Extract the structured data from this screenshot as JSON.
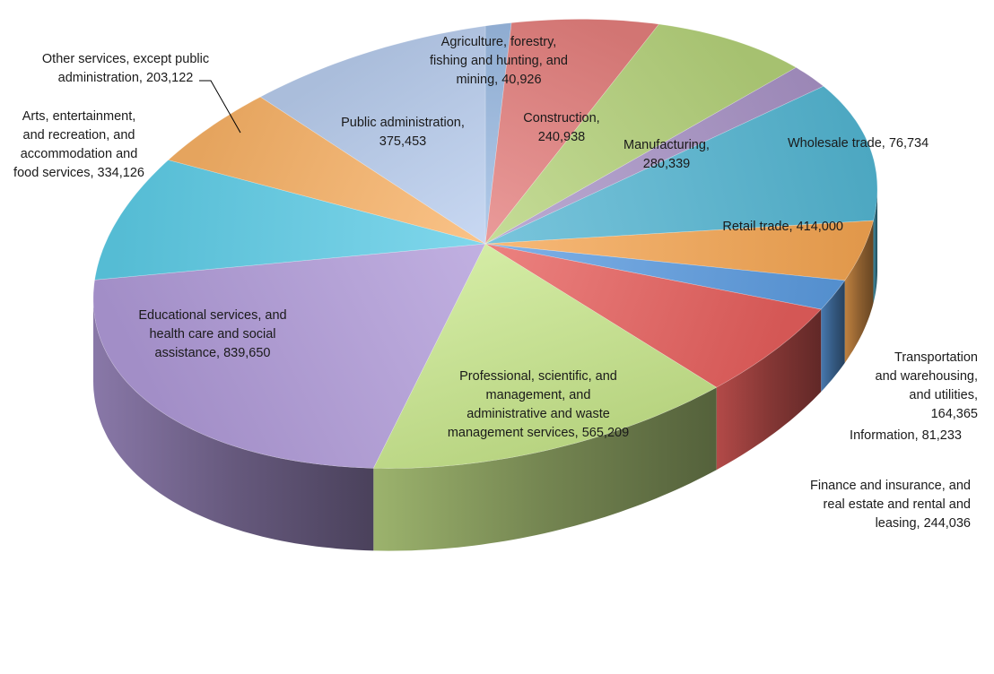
{
  "chart_data": {
    "type": "pie",
    "style": "3d",
    "slices": [
      {
        "label": "Agriculture, forestry, fishing and hunting, and mining",
        "value": 40926,
        "color": "#9bbbe3",
        "text": [
          "Agriculture, forestry,",
          "fishing and hunting, and",
          "mining, 40,926"
        ]
      },
      {
        "label": "Construction",
        "value": 240938,
        "color": "#e47f7d",
        "text": [
          "Construction,",
          "240,938"
        ]
      },
      {
        "label": "Manufacturing",
        "value": 280339,
        "color": "#b4d27a",
        "text": [
          "Manufacturing,",
          "280,339"
        ]
      },
      {
        "label": "Wholesale trade",
        "value": 76734,
        "color": "#a893c6",
        "text": [
          "Wholesale trade, 76,734"
        ]
      },
      {
        "label": "Retail trade",
        "value": 414000,
        "color": "#53b5d2",
        "text": [
          "Retail trade, 414,000"
        ]
      },
      {
        "label": "Transportation and warehousing, and utilities",
        "value": 164365,
        "color": "#f5a552",
        "text": [
          "Transportation",
          "and warehousing,",
          "and utilities,",
          "164,365"
        ]
      },
      {
        "label": "Information",
        "value": 81233,
        "color": "#5b9be0",
        "text": [
          "Information, 81,233"
        ]
      },
      {
        "label": "Finance and insurance, and real estate and rental and leasing",
        "value": 244036,
        "color": "#e65f5c",
        "text": [
          "Finance and insurance, and",
          "real estate and rental and",
          "leasing, 244,036"
        ]
      },
      {
        "label": "Professional, scientific, and management, and administrative and waste management services",
        "value": 565209,
        "color": "#c8e68c",
        "text": [
          "Professional, scientific, and",
          "management, and",
          "administrative and waste",
          "management services, 565,209"
        ]
      },
      {
        "label": "Educational services, and health care and social assistance",
        "value": 839650,
        "color": "#b09ad8",
        "text": [
          "Educational services, and",
          "health care and social",
          "assistance, 839,650"
        ]
      },
      {
        "label": "Arts, entertainment, and recreation, and accommodation and food services",
        "value": 334126,
        "color": "#5ccce6",
        "text": [
          "Arts, entertainment,",
          "and recreation, and",
          "accommodation and",
          "food services, 334,126"
        ]
      },
      {
        "label": "Other services, except public administration",
        "value": 203122,
        "color": "#f9b266",
        "text": [
          "Other services, except public",
          "administration, 203,122"
        ]
      },
      {
        "label": "Public administration",
        "value": 375453,
        "color": "#b9cdee",
        "text": [
          "Public administration,",
          "375,453"
        ]
      }
    ]
  }
}
